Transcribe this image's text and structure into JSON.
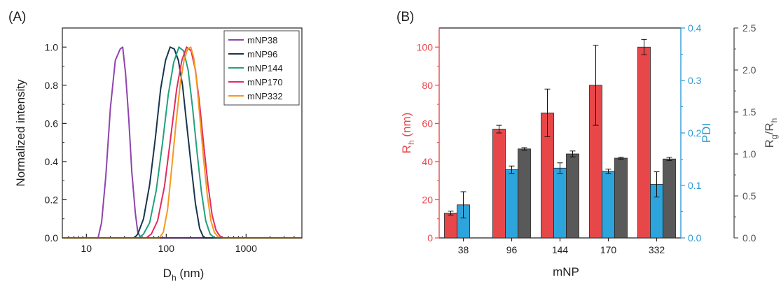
{
  "panels": {
    "a_label": "(A)",
    "b_label": "(B)"
  },
  "chart_data": [
    {
      "type": "line",
      "panel": "(A)",
      "xlabel": "D_h (nm)",
      "xlabel_main": "D",
      "xlabel_sub": "h",
      "xlabel_unit": " (nm)",
      "ylabel": "Normalized intensity",
      "xscale": "log",
      "xlim": [
        5,
        5000
      ],
      "ylim": [
        0,
        1.1
      ],
      "xticks": [
        10,
        100,
        1000
      ],
      "xtick_labels": [
        "10",
        "100",
        "1000"
      ],
      "yticks": [
        0.0,
        0.2,
        0.4,
        0.6,
        0.8,
        1.0
      ],
      "ytick_labels": [
        "0.0",
        "0.2",
        "0.4",
        "0.6",
        "0.8",
        "1.0"
      ],
      "legend_position": "top-right",
      "series": [
        {
          "name": "mNP38",
          "color": "#8e44ad",
          "x": [
            5,
            14,
            15.5,
            17.5,
            20,
            23,
            26.5,
            28.5,
            31,
            34,
            37,
            41,
            44,
            48,
            5000
          ],
          "y": [
            0,
            0,
            0.08,
            0.32,
            0.68,
            0.93,
            0.99,
            1.0,
            0.86,
            0.62,
            0.35,
            0.13,
            0.03,
            0,
            0
          ]
        },
        {
          "name": "mNP96",
          "color": "#17344f",
          "x": [
            5,
            40,
            44,
            52,
            62,
            73,
            85,
            98,
            112,
            126,
            142,
            160,
            180,
            205,
            232,
            262,
            295,
            5000
          ],
          "y": [
            0,
            0,
            0.02,
            0.1,
            0.28,
            0.52,
            0.78,
            0.93,
            1.0,
            0.99,
            0.93,
            0.8,
            0.6,
            0.38,
            0.18,
            0.05,
            0,
            0
          ]
        },
        {
          "name": "mNP144",
          "color": "#22a07e",
          "x": [
            5,
            45,
            52,
            62,
            75,
            90,
            106,
            124,
            144,
            165,
            188,
            214,
            243,
            276,
            312,
            355,
            400,
            5000
          ],
          "y": [
            0,
            0,
            0.02,
            0.08,
            0.25,
            0.5,
            0.75,
            0.92,
            1.0,
            0.98,
            0.88,
            0.68,
            0.45,
            0.24,
            0.09,
            0.02,
            0,
            0
          ]
        },
        {
          "name": "mNP170",
          "color": "#e32b5e",
          "x": [
            5,
            56,
            65,
            78,
            95,
            114,
            135,
            157,
            180,
            205,
            232,
            262,
            296,
            333,
            375,
            420,
            470,
            520,
            5000
          ],
          "y": [
            0,
            0,
            0.02,
            0.09,
            0.27,
            0.53,
            0.78,
            0.93,
            1.0,
            0.98,
            0.88,
            0.7,
            0.48,
            0.28,
            0.12,
            0.04,
            0.01,
            0,
            0
          ]
        },
        {
          "name": "mNP332",
          "color": "#f39a1f",
          "x": [
            5,
            82,
            92,
            104,
            118,
            134,
            150,
            167,
            185,
            203,
            222,
            243,
            268,
            296,
            328,
            363,
            400,
            445,
            500,
            5000
          ],
          "y": [
            0,
            0,
            0.03,
            0.15,
            0.38,
            0.62,
            0.81,
            0.93,
            0.99,
            1.0,
            0.94,
            0.8,
            0.6,
            0.4,
            0.22,
            0.09,
            0.03,
            0.005,
            0,
            0
          ]
        }
      ]
    },
    {
      "type": "bar",
      "panel": "(B)",
      "xlabel": "mNP",
      "categories": [
        "38",
        "96",
        "144",
        "170",
        "332"
      ],
      "axes": {
        "left": {
          "label": "R_h (nm)",
          "label_main": "R",
          "label_sub": "h",
          "label_unit": " (nm)",
          "color": "#e8474a",
          "ylim": [
            0,
            110
          ],
          "ticks": [
            0,
            20,
            40,
            60,
            80,
            100
          ]
        },
        "right1": {
          "label": "PDI",
          "color": "#2b9bd6",
          "ylim": [
            0,
            0.4
          ],
          "ticks": [
            0.0,
            0.1,
            0.2,
            0.3,
            0.4
          ],
          "tick_labels": [
            "0.0",
            "0.1",
            "0.2",
            "0.3",
            "0.4"
          ]
        },
        "right2": {
          "label": "R_g/R_h",
          "color": "#555555",
          "ylim": [
            0,
            2.5
          ],
          "ticks": [
            0.0,
            0.5,
            1.0,
            1.5,
            2.0,
            2.5
          ],
          "tick_labels": [
            "0.0",
            "0.5",
            "1.0",
            "1.5",
            "2.0",
            "2.5"
          ]
        }
      },
      "series": [
        {
          "axis": "left",
          "color": "#e8474a",
          "values": [
            13,
            57,
            65.5,
            80,
            100
          ],
          "errors": [
            1,
            2,
            12.5,
            21,
            4
          ]
        },
        {
          "axis": "right1",
          "color": "#2ea4dc",
          "values": [
            0.063,
            0.13,
            0.133,
            0.127,
            0.102
          ],
          "errors": [
            0.025,
            0.007,
            0.01,
            0.004,
            0.024
          ]
        },
        {
          "axis": "right2",
          "color": "#595959",
          "values": [
            null,
            1.06,
            1.0,
            0.95,
            0.94
          ],
          "errors": [
            null,
            0.015,
            0.035,
            0.012,
            0.02
          ]
        }
      ]
    }
  ]
}
